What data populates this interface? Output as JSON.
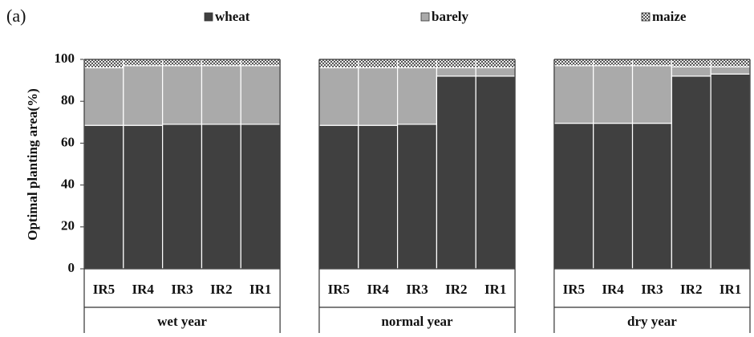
{
  "chart_data": {
    "type": "bar",
    "stacked": true,
    "panel_label": "(a)",
    "ylabel": "Optimal planting area(%)",
    "categories": [
      "IR5",
      "IR4",
      "IR3",
      "IR2",
      "IR1",
      null,
      "IR5",
      "IR4",
      "IR3",
      "IR2",
      "IR1",
      null,
      "IR5",
      "IR4",
      "IR3",
      "IR2",
      "IR1"
    ],
    "groups": [
      "wet year",
      "normal year",
      "dry year"
    ],
    "series": [
      {
        "name": "wheat",
        "color": "#404040",
        "values": [
          68.5,
          68.5,
          69,
          69,
          69,
          null,
          68.5,
          68.5,
          69,
          92,
          92,
          null,
          69.5,
          69.5,
          69.5,
          92,
          93
        ]
      },
      {
        "name": "barely",
        "color": "#aaaaaa",
        "values": [
          27.5,
          28.5,
          28,
          28,
          28,
          null,
          27.5,
          27.5,
          27,
          4,
          4,
          null,
          27.5,
          27.5,
          27.5,
          4.5,
          3.5
        ]
      },
      {
        "name": "maize",
        "color": "#555555",
        "values": [
          4,
          3,
          3,
          3,
          3,
          null,
          4,
          4,
          4,
          4,
          4,
          null,
          3,
          3,
          3,
          3.5,
          3.5
        ]
      }
    ],
    "ylim": [
      0,
      100
    ],
    "yticks": [
      0,
      20,
      40,
      60,
      80,
      100
    ]
  }
}
